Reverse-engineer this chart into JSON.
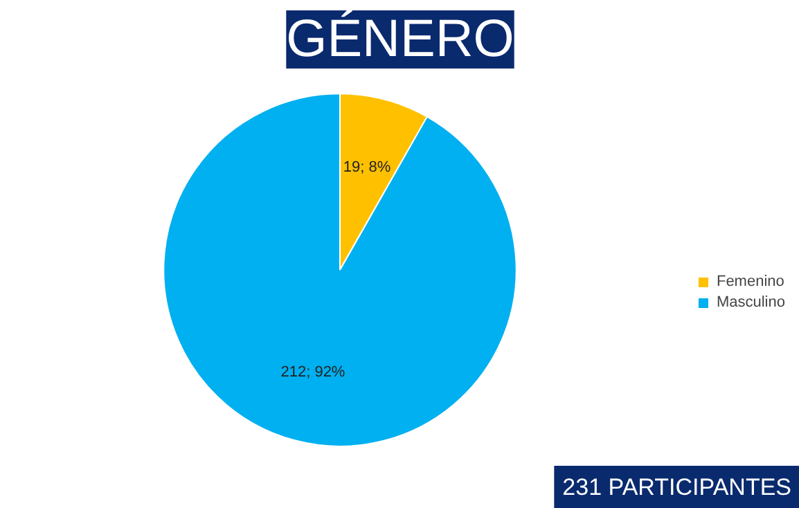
{
  "chart_data": {
    "type": "pie",
    "title": "GÉNERO",
    "categories": [
      "Femenino",
      "Masculino"
    ],
    "values": [
      19,
      212
    ],
    "colors": [
      "#ffc000",
      "#00b0f0"
    ],
    "value_labels": [
      "19; 8%",
      "212; 92%"
    ],
    "legend": "right",
    "annotations": [
      "231 PARTICIPANTES"
    ]
  }
}
